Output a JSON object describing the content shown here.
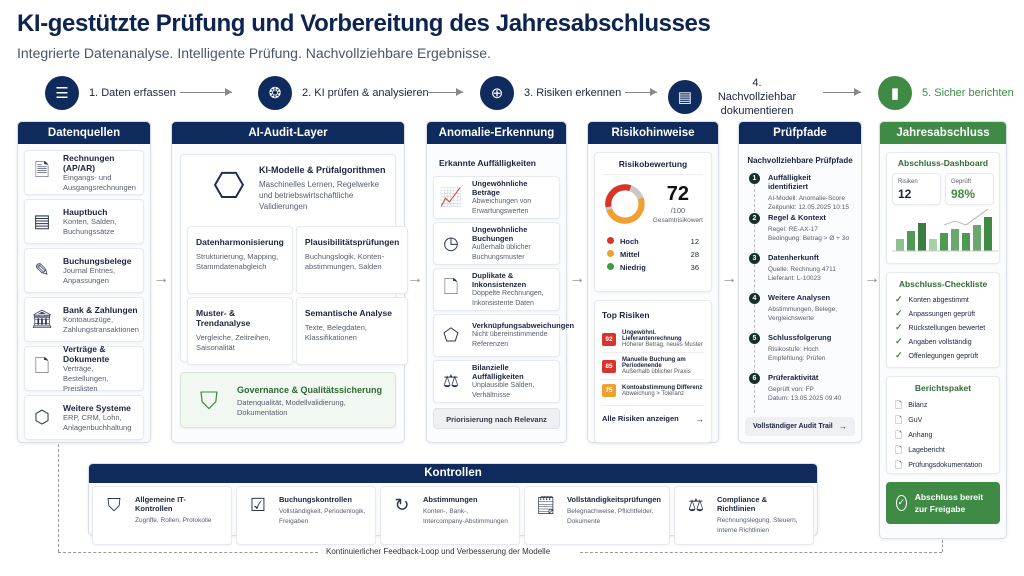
{
  "title": "KI-gestützte Prüfung und Vorbereitung des Jahresabschlusses",
  "subtitle": "Integrierte Datenanalyse. Intelligente Prüfung. Nachvollziehbare Ergebnisse.",
  "steps": [
    {
      "label": "1. Daten erfassen",
      "icon": "database-icon"
    },
    {
      "label": "2. KI prüfen & analysieren",
      "icon": "brain-icon"
    },
    {
      "label": "3. Risiken erkennen",
      "icon": "magnifier-plus-icon"
    },
    {
      "label": "4. Nachvollziehbar dokumentieren",
      "icon": "clipboard-icon"
    },
    {
      "label": "5. Sicher berichten",
      "icon": "bar-chart-icon"
    }
  ],
  "colors": {
    "navy": "#0f2a5c",
    "green": "#3f8a44",
    "high": "#d9342b",
    "medium": "#f0a030",
    "low": "#3f9a44"
  },
  "datenquellen": {
    "title": "Datenquellen",
    "items": [
      {
        "title": "Rechnungen (AP/AR)",
        "desc": "Eingangs- und Ausgangsrechnungen",
        "icon": "invoice-icon"
      },
      {
        "title": "Hauptbuch",
        "desc": "Konten, Salden, Buchungssätze",
        "icon": "ledger-icon"
      },
      {
        "title": "Buchungsbelege",
        "desc": "Journal Entries, Anpassungen",
        "icon": "edit-document-icon"
      },
      {
        "title": "Bank & Zahlungen",
        "desc": "Kontoauszüge, Zahlungstransaktionen",
        "icon": "bank-icon"
      },
      {
        "title": "Verträge & Dokumente",
        "desc": "Verträge, Bestellungen, Preislisten",
        "icon": "document-icon"
      },
      {
        "title": "Weitere Systeme",
        "desc": "ERP, CRM, Lohn, Anlagenbuchhaltung",
        "icon": "cube-icon"
      }
    ]
  },
  "ai": {
    "title": "AI-Audit-Layer",
    "main": {
      "title": "KI-Modelle & Prüfalgorithmen",
      "desc": "Maschinelles Lernen, Regelwerke und betriebswirtschaftliche Validierungen"
    },
    "grid": [
      {
        "title": "Datenharmonisierung",
        "desc": "Strukturierung, Mapping, Stammdatenabgleich"
      },
      {
        "title": "Plausibilitätsprüfungen",
        "desc": "Buchungslogik, Konten-abstimmungen, Salden"
      },
      {
        "title": "Muster- & Trendanalyse",
        "desc": "Vergleiche, Zeitreihen, Saisonalität"
      },
      {
        "title": "Semantische Analyse",
        "desc": "Texte, Belegdaten, Klassifikationen"
      }
    ],
    "governance": {
      "title": "Governance & Qualitätssicherung",
      "desc": "Datenqualität, Modellvalidierung, Dokumentation"
    }
  },
  "anomalie": {
    "title": "Anomalie-Erkennung",
    "subtitle": "Erkannte Auffälligkeiten",
    "items": [
      {
        "title": "Ungewöhnliche Beträge",
        "desc": "Abweichungen von Erwartungswerten",
        "icon": "trend-chart-icon"
      },
      {
        "title": "Ungewöhnliche Buchungen",
        "desc": "Außerhalb üblicher Buchungsmuster",
        "icon": "clock-icon"
      },
      {
        "title": "Duplikate & Inkonsistenzen",
        "desc": "Doppelte Rechnungen, Inkonsistente Daten",
        "icon": "document-icon"
      },
      {
        "title": "Verknüpfungsabweichungen",
        "desc": "Nicht übereinstimmende Referenzen",
        "icon": "network-icon"
      },
      {
        "title": "Bilanzielle Auffälligkeiten",
        "desc": "Unplausible Salden, Verhältnisse",
        "icon": "scale-icon"
      }
    ],
    "button": "Priorisierung nach Relevanz"
  },
  "risiko": {
    "title": "Risikohinweise",
    "bewertung": "Risikobewertung",
    "score": "72",
    "score_max": "/100",
    "score_label": "Gesamtrisikowert",
    "levels": [
      {
        "label": "Hoch",
        "count": "12"
      },
      {
        "label": "Mittel",
        "count": "28"
      },
      {
        "label": "Niedrig",
        "count": "36"
      }
    ],
    "top_title": "Top Risiken",
    "top": [
      {
        "score": "92",
        "title": "Ungewöhnl. Lieferantenrechnung",
        "desc": "Höherer Betrag, neues Muster",
        "level": "high"
      },
      {
        "score": "85",
        "title": "Manuelle Buchung am Periodenende",
        "desc": "Außerhalb üblicher Praxis",
        "level": "high"
      },
      {
        "score": "75",
        "title": "Kontoabstimmung Differenz",
        "desc": "Abweichung > Toleranz",
        "level": "medium"
      }
    ],
    "all_link": "Alle Risiken anzeigen"
  },
  "pfade": {
    "title": "Prüfpfade",
    "subtitle": "Nachvollziehbare Prüfpfade",
    "steps": [
      {
        "n": "1",
        "title": "Auffälligkeit identifiziert",
        "l1": "AI-Modell: Anomalie-Score",
        "l2": "Zeitpunkt: 12.05.2025 10:15"
      },
      {
        "n": "2",
        "title": "Regel & Kontext",
        "l1": "Regel: RE-AX-17",
        "l2": "Bedingung: Betrag > Ø + 3σ"
      },
      {
        "n": "3",
        "title": "Datenherkunft",
        "l1": "Quelle: Rechnung 4711",
        "l2": "Lieferant: L-10023"
      },
      {
        "n": "4",
        "title": "Weitere Analysen",
        "l1": "Abstimmungen, Belege,",
        "l2": "Vergleichswerte"
      },
      {
        "n": "5",
        "title": "Schlussfolgerung",
        "l1": "Risikostufe: Hoch",
        "l2": "Empfehlung: Prüfen"
      },
      {
        "n": "6",
        "title": "Prüferaktivität",
        "l1": "Geprüft von: FP",
        "l2": "Datum: 13.05.2025 09:40"
      }
    ],
    "button": "Vollständiger Audit Trail"
  },
  "jahres": {
    "title": "Jahresabschluss",
    "dashboard": "Abschluss-Dashboard",
    "kpis": [
      {
        "label": "Risiken",
        "value": "12"
      },
      {
        "label": "Geprüft",
        "value": "98%"
      }
    ],
    "bars": [
      0.3,
      0.5,
      0.7,
      0.3,
      0.45,
      0.55,
      0.45,
      0.65,
      0.85
    ],
    "checklist_title": "Abschluss-Checkliste",
    "checklist": [
      "Konten abgestimmt",
      "Anpassungen geprüft",
      "Rückstellungen bewertet",
      "Angaben vollständig",
      "Offenlegungen geprüft"
    ],
    "paket_title": "Berichtspaket",
    "paket": [
      "Bilanz",
      "GuV",
      "Anhang",
      "Lagebericht",
      "Prüfungsdokumentation"
    ],
    "ready": "Abschluss bereit zur Freigabe"
  },
  "kontrollen": {
    "title": "Kontrollen",
    "items": [
      {
        "title": "Allgemeine IT-Kontrollen",
        "desc": "Zugriffe, Rollen, Protokolle",
        "icon": "shield-check-icon"
      },
      {
        "title": "Buchungskontrollen",
        "desc": "Vollständigkeit, Periodenlogik, Freigaben",
        "icon": "checklist-icon"
      },
      {
        "title": "Abstimmungen",
        "desc": "Konten-, Bank-, Intercompany-Abstimmungen",
        "icon": "refresh-clock-icon"
      },
      {
        "title": "Vollständigkeitsprüfungen",
        "desc": "Belegnachweise, Pflichtfelder, Dokumente",
        "icon": "document-check-icon"
      },
      {
        "title": "Compliance & Richtlinien",
        "desc": "Rechnungslegung, Steuern, Interne Richtlinien",
        "icon": "scale-icon"
      }
    ]
  },
  "feedback": "Kontinuierlicher Feedback-Loop und Verbesserung der Modelle"
}
